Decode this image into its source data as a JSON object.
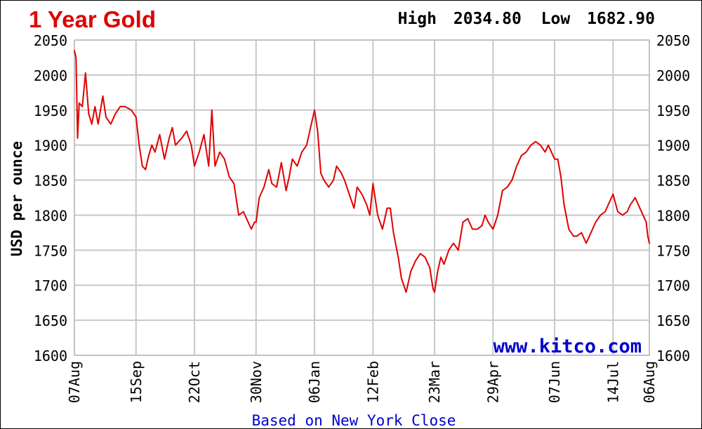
{
  "chart_data": {
    "type": "line",
    "title": "1 Year Gold",
    "stats": {
      "high_label": "High",
      "high_value": "2034.80",
      "low_label": "Low",
      "low_value": "1682.90"
    },
    "ylabel": "USD per ounce",
    "xlabel": "Based on New York Close",
    "watermark": "www.kitco.com",
    "ylim": [
      1600,
      2050
    ],
    "yticks": [
      1600,
      1650,
      1700,
      1750,
      1800,
      1850,
      1900,
      1950,
      2000,
      2050
    ],
    "xlim": [
      "2022-08-07",
      "2023-08-06"
    ],
    "xticks": [
      {
        "label": "07Aug",
        "date": "2022-08-07"
      },
      {
        "label": "15Sep",
        "date": "2022-09-15"
      },
      {
        "label": "22Oct",
        "date": "2022-10-22"
      },
      {
        "label": "30Nov",
        "date": "2022-11-30"
      },
      {
        "label": "06Jan",
        "date": "2023-01-06"
      },
      {
        "label": "12Feb",
        "date": "2023-02-12"
      },
      {
        "label": "23Mar",
        "date": "2023-03-23"
      },
      {
        "label": "29Apr",
        "date": "2023-04-29"
      },
      {
        "label": "07Jun",
        "date": "2023-06-07"
      },
      {
        "label": "14Jul",
        "date": "2023-07-14"
      },
      {
        "label": "06Aug",
        "date": "2023-08-06"
      }
    ],
    "grid": true,
    "colors": {
      "line": "#e00000",
      "title": "#e00000",
      "watermark": "#0000cc",
      "xlabel": "#0000cc",
      "grid": "#c8c8c8"
    },
    "series": [
      {
        "x": [
          "2022-08-07",
          "2022-08-08",
          "2022-08-09",
          "2022-08-10",
          "2022-08-12",
          "2022-08-14",
          "2022-08-16",
          "2022-08-18",
          "2022-08-20",
          "2022-08-22",
          "2022-08-25",
          "2022-08-27",
          "2022-08-30",
          "2022-09-02",
          "2022-09-05",
          "2022-09-08",
          "2022-09-12",
          "2022-09-15",
          "2022-09-17",
          "2022-09-19",
          "2022-09-21",
          "2022-09-23",
          "2022-09-25",
          "2022-09-27",
          "2022-09-30",
          "2022-10-03",
          "2022-10-06",
          "2022-10-08",
          "2022-10-10",
          "2022-10-14",
          "2022-10-17",
          "2022-10-20",
          "2022-10-22",
          "2022-10-25",
          "2022-10-28",
          "2022-10-31",
          "2022-11-02",
          "2022-11-04",
          "2022-11-07",
          "2022-11-10",
          "2022-11-13",
          "2022-11-16",
          "2022-11-19",
          "2022-11-22",
          "2022-11-25",
          "2022-11-27",
          "2022-11-29",
          "2022-11-30",
          "2022-12-02",
          "2022-12-05",
          "2022-12-08",
          "2022-12-10",
          "2022-12-13",
          "2022-12-16",
          "2022-12-19",
          "2022-12-21",
          "2022-12-23",
          "2022-12-26",
          "2022-12-29",
          "2023-01-01",
          "2023-01-04",
          "2023-01-06",
          "2023-01-08",
          "2023-01-10",
          "2023-01-12",
          "2023-01-15",
          "2023-01-18",
          "2023-01-20",
          "2023-01-23",
          "2023-01-25",
          "2023-01-28",
          "2023-01-31",
          "2023-02-02",
          "2023-02-05",
          "2023-02-08",
          "2023-02-10",
          "2023-02-12",
          "2023-02-15",
          "2023-02-18",
          "2023-02-21",
          "2023-02-23",
          "2023-02-25",
          "2023-02-28",
          "2023-03-02",
          "2023-03-05",
          "2023-03-08",
          "2023-03-11",
          "2023-03-14",
          "2023-03-17",
          "2023-03-20",
          "2023-03-22",
          "2023-03-23",
          "2023-03-25",
          "2023-03-27",
          "2023-03-29",
          "2023-04-01",
          "2023-04-04",
          "2023-04-07",
          "2023-04-10",
          "2023-04-13",
          "2023-04-16",
          "2023-04-19",
          "2023-04-22",
          "2023-04-24",
          "2023-04-26",
          "2023-04-29",
          "2023-05-02",
          "2023-05-05",
          "2023-05-08",
          "2023-05-11",
          "2023-05-14",
          "2023-05-17",
          "2023-05-20",
          "2023-05-23",
          "2023-05-26",
          "2023-05-29",
          "2023-06-01",
          "2023-06-03",
          "2023-06-05",
          "2023-06-07",
          "2023-06-09",
          "2023-06-11",
          "2023-06-13",
          "2023-06-16",
          "2023-06-19",
          "2023-06-21",
          "2023-06-24",
          "2023-06-27",
          "2023-06-30",
          "2023-07-03",
          "2023-07-06",
          "2023-07-09",
          "2023-07-11",
          "2023-07-14",
          "2023-07-17",
          "2023-07-20",
          "2023-07-23",
          "2023-07-25",
          "2023-07-28",
          "2023-07-31",
          "2023-08-02",
          "2023-08-04",
          "2023-08-05",
          "2023-08-06"
        ],
        "values": [
          2034.8,
          2025,
          1910,
          1960,
          1955,
          2003,
          1945,
          1930,
          1955,
          1930,
          1970,
          1940,
          1930,
          1945,
          1955,
          1955,
          1950,
          1940,
          1900,
          1870,
          1865,
          1885,
          1900,
          1890,
          1915,
          1880,
          1910,
          1925,
          1900,
          1910,
          1920,
          1900,
          1870,
          1890,
          1915,
          1870,
          1950,
          1870,
          1890,
          1880,
          1855,
          1845,
          1800,
          1805,
          1790,
          1780,
          1790,
          1790,
          1825,
          1840,
          1865,
          1845,
          1840,
          1875,
          1835,
          1855,
          1880,
          1870,
          1890,
          1900,
          1930,
          1950,
          1920,
          1860,
          1850,
          1840,
          1850,
          1870,
          1860,
          1850,
          1830,
          1810,
          1840,
          1830,
          1815,
          1800,
          1845,
          1800,
          1780,
          1810,
          1810,
          1775,
          1740,
          1710,
          1690,
          1720,
          1735,
          1745,
          1740,
          1725,
          1695,
          1690,
          1720,
          1740,
          1730,
          1750,
          1760,
          1750,
          1790,
          1795,
          1780,
          1780,
          1785,
          1800,
          1790,
          1780,
          1800,
          1835,
          1840,
          1850,
          1870,
          1885,
          1890,
          1900,
          1905,
          1900,
          1890,
          1900,
          1890,
          1880,
          1880,
          1855,
          1815,
          1780,
          1770,
          1770,
          1775,
          1760,
          1775,
          1790,
          1800,
          1805,
          1815,
          1830,
          1805,
          1800,
          1805,
          1815,
          1825,
          1810,
          1800,
          1790,
          1770,
          1760
        ]
      }
    ]
  }
}
